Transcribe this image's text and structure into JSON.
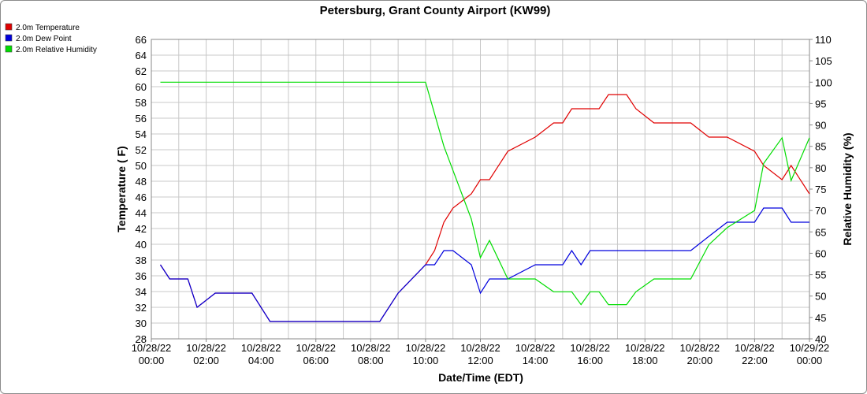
{
  "chart_data": {
    "type": "line",
    "title": "Petersburg, Grant County Airport (KW99)",
    "xlabel": "Date/Time (EDT)",
    "ylabel_left": "Temperature ( F)",
    "ylabel_right": "Relative Humidity (%)",
    "xlim_hours": [
      0,
      24
    ],
    "ylim_left": [
      28,
      66
    ],
    "ylim_right": [
      40,
      110
    ],
    "left_ticks": [
      28,
      30,
      32,
      34,
      36,
      38,
      40,
      42,
      44,
      46,
      48,
      50,
      52,
      54,
      56,
      58,
      60,
      62,
      64,
      66
    ],
    "right_ticks": [
      40,
      45,
      50,
      55,
      60,
      65,
      70,
      75,
      80,
      85,
      90,
      95,
      100,
      105,
      110
    ],
    "x_ticks": [
      {
        "hour": 0,
        "date": "10/28/22",
        "time": "00:00"
      },
      {
        "hour": 2,
        "date": "10/28/22",
        "time": "02:00"
      },
      {
        "hour": 4,
        "date": "10/28/22",
        "time": "04:00"
      },
      {
        "hour": 6,
        "date": "10/28/22",
        "time": "06:00"
      },
      {
        "hour": 8,
        "date": "10/28/22",
        "time": "08:00"
      },
      {
        "hour": 10,
        "date": "10/28/22",
        "time": "10:00"
      },
      {
        "hour": 12,
        "date": "10/28/22",
        "time": "12:00"
      },
      {
        "hour": 14,
        "date": "10/28/22",
        "time": "14:00"
      },
      {
        "hour": 16,
        "date": "10/28/22",
        "time": "16:00"
      },
      {
        "hour": 18,
        "date": "10/28/22",
        "time": "18:00"
      },
      {
        "hour": 20,
        "date": "10/28/22",
        "time": "20:00"
      },
      {
        "hour": 22,
        "date": "10/28/22",
        "time": "22:00"
      },
      {
        "hour": 24,
        "date": "10/29/22",
        "time": "00:00"
      }
    ],
    "legend_position": "top-left",
    "grid": true,
    "series": [
      {
        "name": "2.0m Temperature",
        "color": "#e00000",
        "axis": "left",
        "points": [
          [
            0.33,
            37.4
          ],
          [
            0.67,
            35.6
          ],
          [
            1.33,
            35.6
          ],
          [
            1.67,
            32.0
          ],
          [
            2.33,
            33.8
          ],
          [
            3.67,
            33.8
          ],
          [
            4.33,
            30.2
          ],
          [
            8.33,
            30.2
          ],
          [
            9.0,
            33.8
          ],
          [
            10.0,
            37.4
          ],
          [
            10.33,
            39.2
          ],
          [
            10.67,
            42.8
          ],
          [
            11.0,
            44.6
          ],
          [
            11.67,
            46.4
          ],
          [
            12.0,
            48.2
          ],
          [
            12.33,
            48.2
          ],
          [
            13.0,
            51.8
          ],
          [
            14.0,
            53.6
          ],
          [
            14.67,
            55.4
          ],
          [
            15.0,
            55.4
          ],
          [
            15.33,
            57.2
          ],
          [
            16.33,
            57.2
          ],
          [
            16.67,
            59.0
          ],
          [
            17.33,
            59.0
          ],
          [
            17.67,
            57.2
          ],
          [
            18.33,
            55.4
          ],
          [
            19.67,
            55.4
          ],
          [
            20.33,
            53.6
          ],
          [
            21.0,
            53.6
          ],
          [
            22.0,
            51.8
          ],
          [
            22.33,
            50.0
          ],
          [
            23.0,
            48.2
          ],
          [
            23.33,
            50.0
          ],
          [
            24.0,
            46.4
          ]
        ]
      },
      {
        "name": "2.0m Dew Point",
        "color": "#0000dd",
        "axis": "left",
        "points": [
          [
            0.33,
            37.4
          ],
          [
            0.67,
            35.6
          ],
          [
            1.33,
            35.6
          ],
          [
            1.67,
            32.0
          ],
          [
            2.33,
            33.8
          ],
          [
            3.67,
            33.8
          ],
          [
            4.33,
            30.2
          ],
          [
            8.33,
            30.2
          ],
          [
            9.0,
            33.8
          ],
          [
            10.0,
            37.4
          ],
          [
            10.33,
            37.4
          ],
          [
            10.67,
            39.2
          ],
          [
            11.0,
            39.2
          ],
          [
            11.67,
            37.4
          ],
          [
            12.0,
            33.8
          ],
          [
            12.33,
            35.6
          ],
          [
            13.0,
            35.6
          ],
          [
            14.0,
            37.4
          ],
          [
            15.0,
            37.4
          ],
          [
            15.33,
            39.2
          ],
          [
            15.67,
            37.4
          ],
          [
            16.0,
            39.2
          ],
          [
            19.67,
            39.2
          ],
          [
            20.33,
            41.0
          ],
          [
            21.0,
            42.8
          ],
          [
            22.0,
            42.8
          ],
          [
            22.33,
            44.6
          ],
          [
            23.0,
            44.6
          ],
          [
            23.33,
            42.8
          ],
          [
            24.0,
            42.8
          ]
        ]
      },
      {
        "name": "2.0m Relative Humidity",
        "color": "#00dd00",
        "axis": "right",
        "points": [
          [
            0.33,
            100
          ],
          [
            10.0,
            100
          ],
          [
            10.67,
            85
          ],
          [
            11.67,
            68
          ],
          [
            12.0,
            59
          ],
          [
            12.33,
            63
          ],
          [
            13.0,
            54
          ],
          [
            14.0,
            54
          ],
          [
            14.67,
            51
          ],
          [
            15.33,
            51
          ],
          [
            15.67,
            48
          ],
          [
            16.0,
            51
          ],
          [
            16.33,
            51
          ],
          [
            16.67,
            48
          ],
          [
            17.33,
            48
          ],
          [
            17.67,
            51
          ],
          [
            18.33,
            54
          ],
          [
            19.67,
            54
          ],
          [
            20.33,
            62
          ],
          [
            21.0,
            66
          ],
          [
            22.0,
            70
          ],
          [
            22.33,
            81
          ],
          [
            23.0,
            87
          ],
          [
            23.33,
            77
          ],
          [
            24.0,
            87
          ]
        ]
      }
    ]
  }
}
